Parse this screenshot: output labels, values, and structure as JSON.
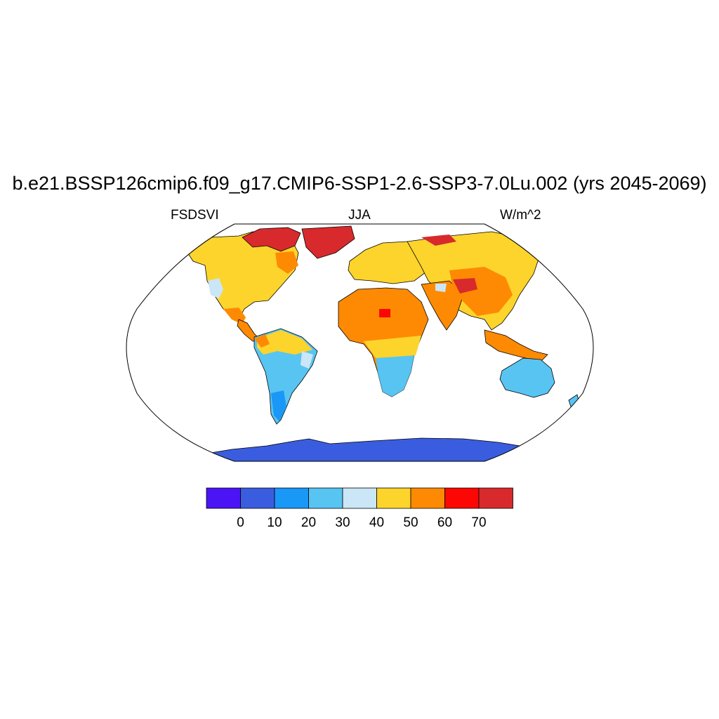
{
  "title": "b.e21.BSSP126cmip6.f09_g17.CMIP6-SSP1-2.6-SSP3-7.0Lu.002 (yrs 2045-2069)",
  "subtitle_left": "FSDSVI",
  "subtitle_center": "JJA",
  "subtitle_right": "W/m^2",
  "colorbar": {
    "colors": [
      "#4a14f5",
      "#3a5ddf",
      "#1a98f8",
      "#58c4f2",
      "#cae6f7",
      "#fdd42b",
      "#fe8a03",
      "#fc0704",
      "#d82a2c"
    ],
    "tick_labels": [
      "0",
      "10",
      "20",
      "30",
      "40",
      "50",
      "60",
      "70"
    ]
  },
  "map": {
    "projection": "Robinson",
    "colors": {
      "ocean": "#ffffff",
      "antarctica": "#3a5ddf",
      "australia": "#58c4f2",
      "south_america": "#58c4f2",
      "africa_south": "#58c4f2",
      "subtropics": "#fdd42b",
      "sahara_arabia_india": "#fe8a03",
      "greenland": "#d82a2c",
      "hotspots": "#fc0704"
    }
  }
}
